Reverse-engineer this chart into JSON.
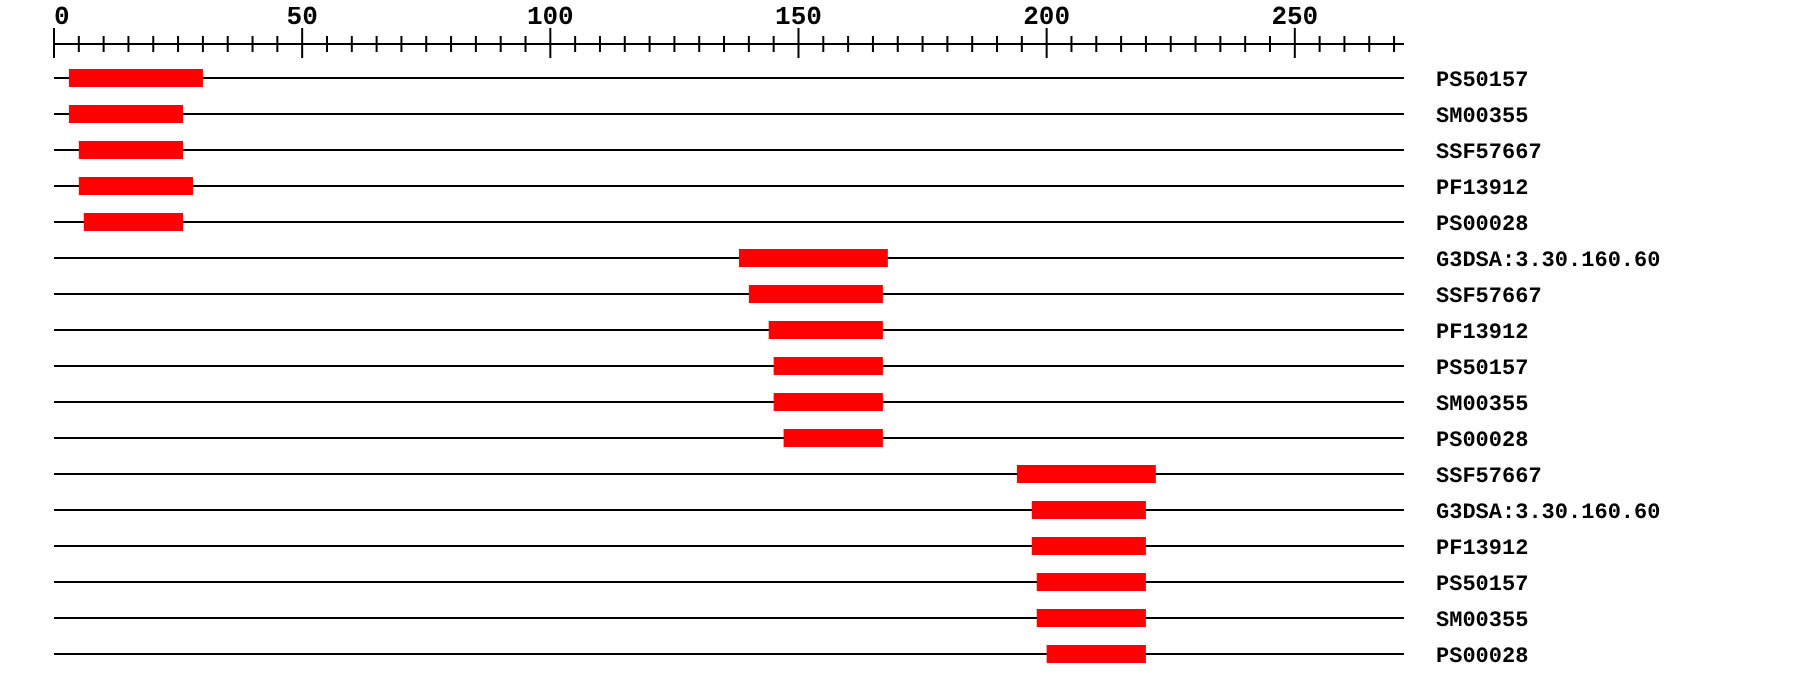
{
  "chart_data": {
    "type": "bar",
    "orientation": "horizontal",
    "categories": [
      "PS50157",
      "SM00355",
      "SSF57667",
      "PF13912",
      "PS00028",
      "G3DSA:3.30.160.60",
      "SSF57667",
      "PF13912",
      "PS50157",
      "SM00355",
      "PS00028",
      "SSF57667",
      "G3DSA:3.30.160.60",
      "PF13912",
      "PS50157",
      "SM00355",
      "PS00028"
    ],
    "base": [
      3,
      3,
      5,
      5,
      6,
      138,
      140,
      144,
      145,
      145,
      147,
      194,
      197,
      197,
      198,
      198,
      200
    ],
    "values": [
      27,
      23,
      21,
      23,
      20,
      30,
      27,
      23,
      22,
      22,
      20,
      28,
      23,
      23,
      22,
      22,
      20
    ],
    "color": "#ff0000",
    "xlim": [
      0,
      272
    ],
    "xticks": [
      0,
      {
        "value": 5,
        "label": null
      },
      {
        "value": 10,
        "label": null
      },
      {
        "value": 15,
        "label": null
      },
      {
        "value": 20,
        "label": null
      },
      {
        "value": 25,
        "label": null
      },
      {
        "value": 30,
        "label": null
      },
      {
        "value": 35,
        "label": null
      },
      {
        "value": 40,
        "label": null
      },
      {
        "value": 45,
        "label": null
      },
      50,
      {
        "value": 55,
        "label": null
      },
      {
        "value": 60,
        "label": null
      },
      {
        "value": 65,
        "label": null
      },
      {
        "value": 70,
        "label": null
      },
      {
        "value": 75,
        "label": null
      },
      {
        "value": 80,
        "label": null
      },
      {
        "value": 85,
        "label": null
      },
      {
        "value": 90,
        "label": null
      },
      {
        "value": 95,
        "label": null
      },
      100,
      {
        "value": 105,
        "label": null
      },
      {
        "value": 110,
        "label": null
      },
      {
        "value": 115,
        "label": null
      },
      {
        "value": 120,
        "label": null
      },
      {
        "value": 125,
        "label": null
      },
      {
        "value": 130,
        "label": null
      },
      {
        "value": 135,
        "label": null
      },
      {
        "value": 140,
        "label": null
      },
      {
        "value": 145,
        "label": null
      },
      150,
      {
        "value": 155,
        "label": null
      },
      {
        "value": 160,
        "label": null
      },
      {
        "value": 165,
        "label": null
      },
      {
        "value": 170,
        "label": null
      },
      {
        "value": 175,
        "label": null
      },
      {
        "value": 180,
        "label": null
      },
      {
        "value": 185,
        "label": null
      },
      {
        "value": 190,
        "label": null
      },
      {
        "value": 195,
        "label": null
      },
      200,
      {
        "value": 205,
        "label": null
      },
      {
        "value": 210,
        "label": null
      },
      {
        "value": 215,
        "label": null
      },
      {
        "value": 220,
        "label": null
      },
      {
        "value": 225,
        "label": null
      },
      {
        "value": 230,
        "label": null
      },
      {
        "value": 235,
        "label": null
      },
      {
        "value": 240,
        "label": null
      },
      {
        "value": 245,
        "label": null
      },
      250,
      {
        "value": 255,
        "label": null
      },
      {
        "value": 260,
        "label": null
      },
      {
        "value": 265,
        "label": null
      },
      {
        "value": 270,
        "label": null
      }
    ]
  }
}
